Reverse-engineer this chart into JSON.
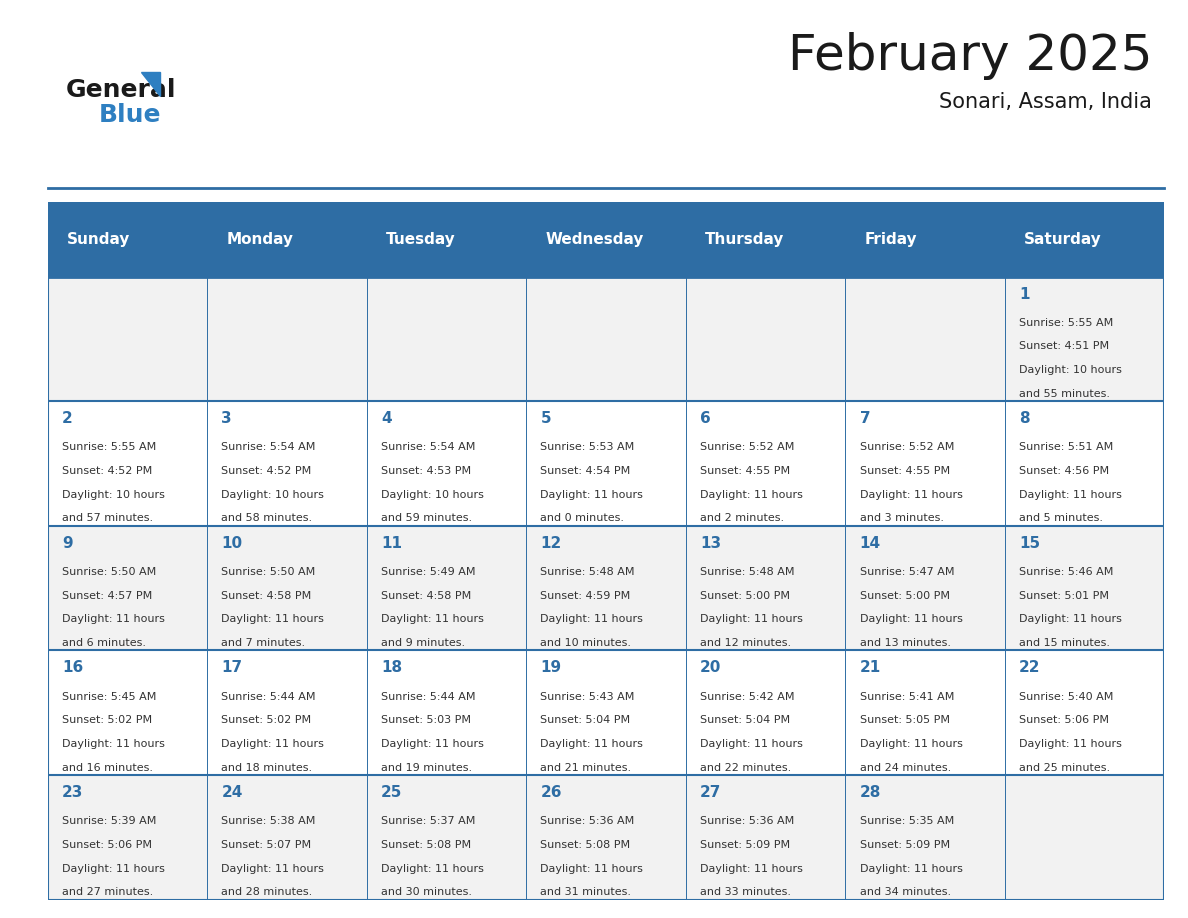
{
  "title": "February 2025",
  "subtitle": "Sonari, Assam, India",
  "days_of_week": [
    "Sunday",
    "Monday",
    "Tuesday",
    "Wednesday",
    "Thursday",
    "Friday",
    "Saturday"
  ],
  "header_bg": "#2E6DA4",
  "header_text": "#FFFFFF",
  "cell_bg_light": "#F2F2F2",
  "cell_bg_white": "#FFFFFF",
  "divider_color": "#2E6DA4",
  "text_color": "#333333",
  "day_num_color": "#2E6DA4",
  "title_color": "#1a1a1a",
  "calendar_data": [
    [
      null,
      null,
      null,
      null,
      null,
      null,
      {
        "day": 1,
        "sunrise": "5:55 AM",
        "sunset": "4:51 PM",
        "daylight_h": "10 hours",
        "daylight_m": "and 55 minutes."
      }
    ],
    [
      {
        "day": 2,
        "sunrise": "5:55 AM",
        "sunset": "4:52 PM",
        "daylight_h": "10 hours",
        "daylight_m": "and 57 minutes."
      },
      {
        "day": 3,
        "sunrise": "5:54 AM",
        "sunset": "4:52 PM",
        "daylight_h": "10 hours",
        "daylight_m": "and 58 minutes."
      },
      {
        "day": 4,
        "sunrise": "5:54 AM",
        "sunset": "4:53 PM",
        "daylight_h": "10 hours",
        "daylight_m": "and 59 minutes."
      },
      {
        "day": 5,
        "sunrise": "5:53 AM",
        "sunset": "4:54 PM",
        "daylight_h": "11 hours",
        "daylight_m": "and 0 minutes."
      },
      {
        "day": 6,
        "sunrise": "5:52 AM",
        "sunset": "4:55 PM",
        "daylight_h": "11 hours",
        "daylight_m": "and 2 minutes."
      },
      {
        "day": 7,
        "sunrise": "5:52 AM",
        "sunset": "4:55 PM",
        "daylight_h": "11 hours",
        "daylight_m": "and 3 minutes."
      },
      {
        "day": 8,
        "sunrise": "5:51 AM",
        "sunset": "4:56 PM",
        "daylight_h": "11 hours",
        "daylight_m": "and 5 minutes."
      }
    ],
    [
      {
        "day": 9,
        "sunrise": "5:50 AM",
        "sunset": "4:57 PM",
        "daylight_h": "11 hours",
        "daylight_m": "and 6 minutes."
      },
      {
        "day": 10,
        "sunrise": "5:50 AM",
        "sunset": "4:58 PM",
        "daylight_h": "11 hours",
        "daylight_m": "and 7 minutes."
      },
      {
        "day": 11,
        "sunrise": "5:49 AM",
        "sunset": "4:58 PM",
        "daylight_h": "11 hours",
        "daylight_m": "and 9 minutes."
      },
      {
        "day": 12,
        "sunrise": "5:48 AM",
        "sunset": "4:59 PM",
        "daylight_h": "11 hours",
        "daylight_m": "and 10 minutes."
      },
      {
        "day": 13,
        "sunrise": "5:48 AM",
        "sunset": "5:00 PM",
        "daylight_h": "11 hours",
        "daylight_m": "and 12 minutes."
      },
      {
        "day": 14,
        "sunrise": "5:47 AM",
        "sunset": "5:00 PM",
        "daylight_h": "11 hours",
        "daylight_m": "and 13 minutes."
      },
      {
        "day": 15,
        "sunrise": "5:46 AM",
        "sunset": "5:01 PM",
        "daylight_h": "11 hours",
        "daylight_m": "and 15 minutes."
      }
    ],
    [
      {
        "day": 16,
        "sunrise": "5:45 AM",
        "sunset": "5:02 PM",
        "daylight_h": "11 hours",
        "daylight_m": "and 16 minutes."
      },
      {
        "day": 17,
        "sunrise": "5:44 AM",
        "sunset": "5:02 PM",
        "daylight_h": "11 hours",
        "daylight_m": "and 18 minutes."
      },
      {
        "day": 18,
        "sunrise": "5:44 AM",
        "sunset": "5:03 PM",
        "daylight_h": "11 hours",
        "daylight_m": "and 19 minutes."
      },
      {
        "day": 19,
        "sunrise": "5:43 AM",
        "sunset": "5:04 PM",
        "daylight_h": "11 hours",
        "daylight_m": "and 21 minutes."
      },
      {
        "day": 20,
        "sunrise": "5:42 AM",
        "sunset": "5:04 PM",
        "daylight_h": "11 hours",
        "daylight_m": "and 22 minutes."
      },
      {
        "day": 21,
        "sunrise": "5:41 AM",
        "sunset": "5:05 PM",
        "daylight_h": "11 hours",
        "daylight_m": "and 24 minutes."
      },
      {
        "day": 22,
        "sunrise": "5:40 AM",
        "sunset": "5:06 PM",
        "daylight_h": "11 hours",
        "daylight_m": "and 25 minutes."
      }
    ],
    [
      {
        "day": 23,
        "sunrise": "5:39 AM",
        "sunset": "5:06 PM",
        "daylight_h": "11 hours",
        "daylight_m": "and 27 minutes."
      },
      {
        "day": 24,
        "sunrise": "5:38 AM",
        "sunset": "5:07 PM",
        "daylight_h": "11 hours",
        "daylight_m": "and 28 minutes."
      },
      {
        "day": 25,
        "sunrise": "5:37 AM",
        "sunset": "5:08 PM",
        "daylight_h": "11 hours",
        "daylight_m": "and 30 minutes."
      },
      {
        "day": 26,
        "sunrise": "5:36 AM",
        "sunset": "5:08 PM",
        "daylight_h": "11 hours",
        "daylight_m": "and 31 minutes."
      },
      {
        "day": 27,
        "sunrise": "5:36 AM",
        "sunset": "5:09 PM",
        "daylight_h": "11 hours",
        "daylight_m": "and 33 minutes."
      },
      {
        "day": 28,
        "sunrise": "5:35 AM",
        "sunset": "5:09 PM",
        "daylight_h": "11 hours",
        "daylight_m": "and 34 minutes."
      },
      null
    ]
  ]
}
